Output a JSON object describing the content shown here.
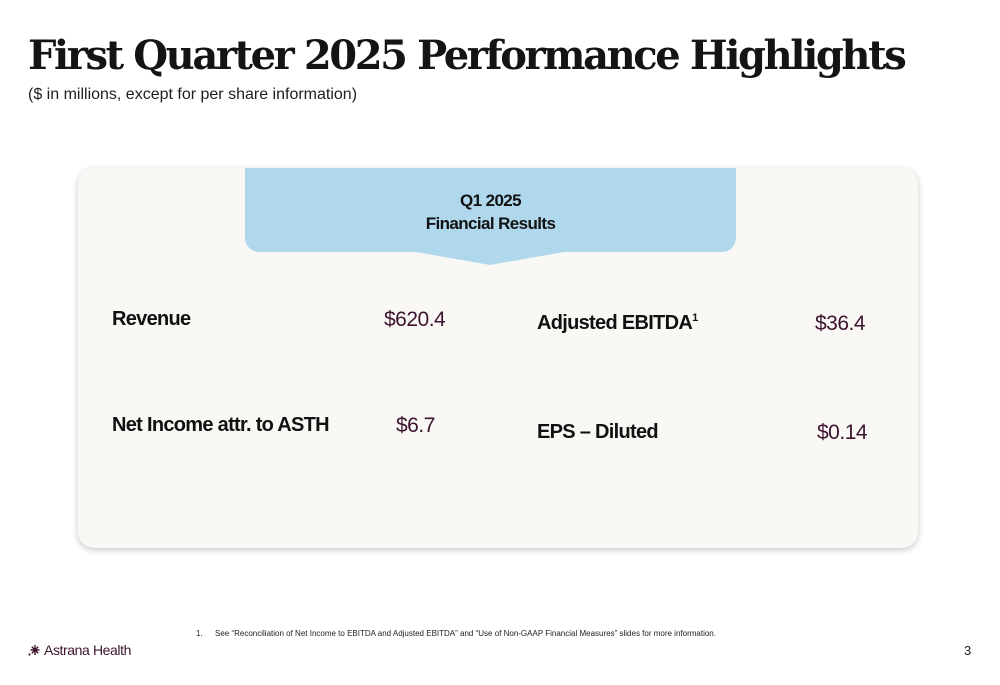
{
  "header": {
    "title": "First Quarter 2025 Performance Highlights",
    "subtitle": "($ in millions, except for per share information)"
  },
  "results_panel": {
    "heading_line1": "Q1 2025",
    "heading_line2": "Financial Results",
    "metrics": [
      {
        "label": "Revenue",
        "value": "$620.4"
      },
      {
        "label": "Adjusted EBITDA",
        "footnote_ref": "1",
        "value": "$36.4"
      },
      {
        "label": "Net Income attr. to ASTH",
        "value": "$6.7"
      },
      {
        "label": "EPS – Diluted",
        "value": "$0.14"
      }
    ],
    "tab_color": "#b0d8ec",
    "value_color": "#3d1430"
  },
  "footnote": {
    "number": "1.",
    "text": "See “Reconciliation of Net Income to EBITDA and Adjusted EBITDA” and “Use of Non-GAAP Financial Measures” slides for more information."
  },
  "footer": {
    "logo_text": "Astrana Health",
    "logo_icon": "astrana-mark-icon",
    "page_number": "3"
  }
}
